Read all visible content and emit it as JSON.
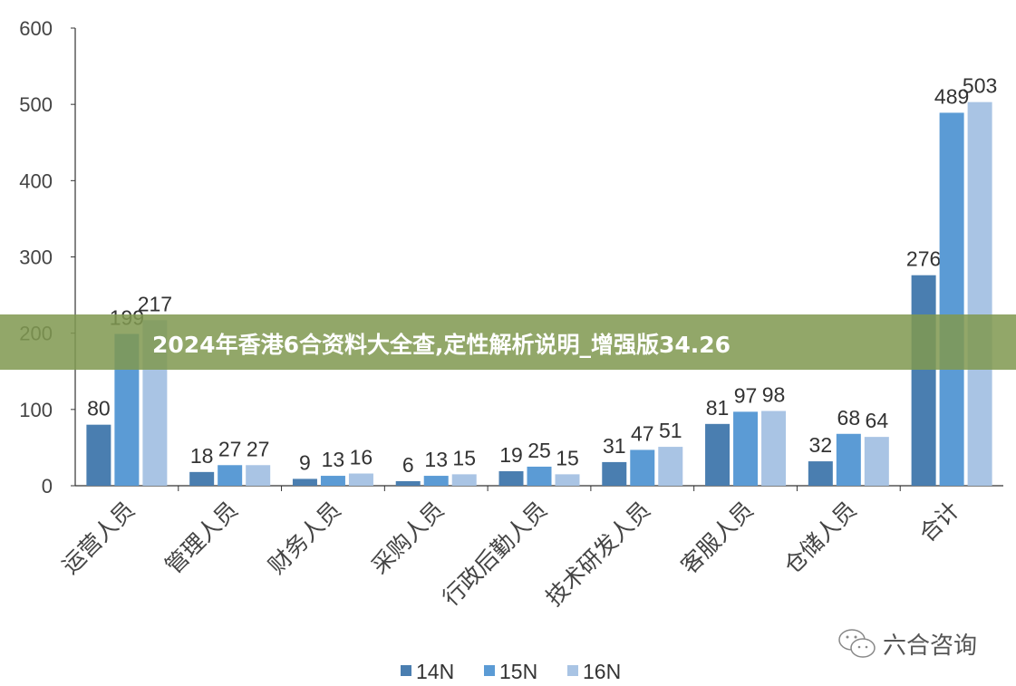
{
  "chart_data": {
    "type": "bar",
    "categories": [
      "运营人员",
      "管理人员",
      "财务人员",
      "采购人员",
      "行政后勤人员",
      "技术研发人员",
      "客服人员",
      "仓储人员",
      "合计"
    ],
    "series": [
      {
        "name": "14N",
        "color": "#4A7EB0",
        "values": [
          80,
          18,
          9,
          6,
          19,
          31,
          81,
          32,
          276
        ]
      },
      {
        "name": "15N",
        "color": "#5B9BD5",
        "values": [
          199,
          27,
          13,
          13,
          25,
          47,
          97,
          68,
          489
        ]
      },
      {
        "name": "16N",
        "color": "#A9C4E4",
        "values": [
          217,
          27,
          16,
          15,
          15,
          51,
          98,
          64,
          503
        ]
      }
    ],
    "ylim": [
      0,
      600
    ],
    "yticks": [
      0,
      100,
      200,
      300,
      400,
      500,
      600
    ],
    "grid": false,
    "legend": "bottom"
  },
  "banner": {
    "text": "2024年香港6合资料大全查,定性解析说明_增强版34.26"
  },
  "watermark": {
    "text": "六合咨询",
    "icon": "wechat-icon"
  }
}
